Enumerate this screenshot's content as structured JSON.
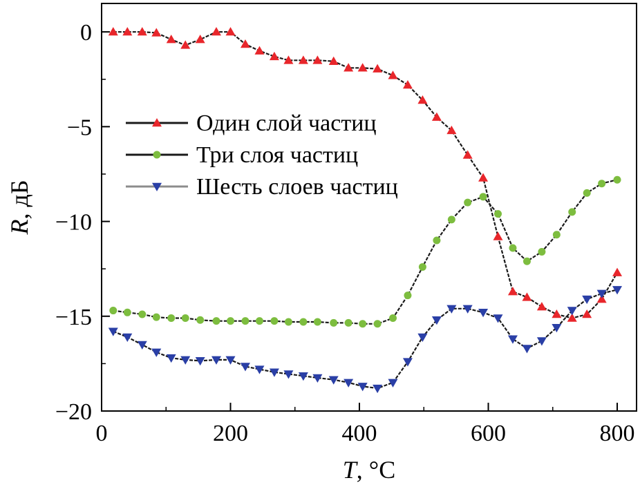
{
  "chart_data": {
    "type": "line",
    "xlabel_var": "T",
    "xlabel_unit": ", °C",
    "ylabel_var": "R",
    "ylabel_unit": ", дБ",
    "xlim": [
      0,
      830
    ],
    "ylim": [
      -20,
      1.5
    ],
    "xticks": [
      0,
      200,
      400,
      600,
      800
    ],
    "yticks": [
      0,
      -5,
      -10,
      -15,
      -20
    ],
    "ytick_labels": [
      "0",
      "−5",
      "−10",
      "−15",
      "−20"
    ],
    "grid": false,
    "legend_position": "center-left",
    "series": [
      {
        "name": "Один слой частиц",
        "color": "#e8262b",
        "marker": "triangle-up",
        "x": [
          18,
          40,
          63,
          85,
          108,
          130,
          153,
          178,
          200,
          223,
          245,
          268,
          290,
          313,
          335,
          360,
          383,
          405,
          428,
          452,
          475,
          498,
          520,
          543,
          568,
          592,
          615,
          638,
          660,
          683,
          706,
          730,
          753,
          776,
          800
        ],
        "y": [
          0,
          0,
          0,
          -0.05,
          -0.4,
          -0.7,
          -0.4,
          0,
          0,
          -0.65,
          -1.0,
          -1.3,
          -1.5,
          -1.5,
          -1.5,
          -1.55,
          -1.9,
          -1.9,
          -1.95,
          -2.3,
          -2.8,
          -3.6,
          -4.5,
          -5.2,
          -6.5,
          -7.7,
          -10.8,
          -13.7,
          -14.0,
          -14.5,
          -14.9,
          -15.1,
          -14.9,
          -14.1,
          -12.7
        ]
      },
      {
        "name": "Три слоя частиц",
        "color": "#7dbd3f",
        "marker": "circle",
        "x": [
          18,
          40,
          63,
          85,
          108,
          130,
          153,
          178,
          200,
          223,
          245,
          268,
          290,
          313,
          335,
          360,
          383,
          405,
          428,
          452,
          475,
          498,
          520,
          543,
          568,
          592,
          615,
          638,
          660,
          683,
          706,
          730,
          753,
          776,
          800
        ],
        "y": [
          -14.7,
          -14.8,
          -14.9,
          -15.05,
          -15.1,
          -15.1,
          -15.2,
          -15.25,
          -15.25,
          -15.25,
          -15.25,
          -15.25,
          -15.3,
          -15.3,
          -15.3,
          -15.35,
          -15.35,
          -15.4,
          -15.4,
          -15.1,
          -13.9,
          -12.4,
          -11.0,
          -9.9,
          -9.0,
          -8.7,
          -9.6,
          -11.4,
          -12.1,
          -11.6,
          -10.7,
          -9.5,
          -8.5,
          -8.0,
          -7.8
        ]
      },
      {
        "name": "Шесть слоев частиц",
        "color": "#2a3fa6",
        "marker": "triangle-down",
        "x": [
          18,
          40,
          63,
          85,
          108,
          130,
          153,
          178,
          200,
          223,
          245,
          268,
          290,
          313,
          335,
          360,
          383,
          405,
          428,
          452,
          475,
          498,
          520,
          543,
          568,
          592,
          615,
          638,
          660,
          683,
          706,
          730,
          753,
          776,
          800
        ],
        "y": [
          -15.8,
          -16.1,
          -16.5,
          -16.9,
          -17.2,
          -17.3,
          -17.35,
          -17.3,
          -17.3,
          -17.65,
          -17.8,
          -17.95,
          -18.05,
          -18.15,
          -18.25,
          -18.35,
          -18.5,
          -18.7,
          -18.8,
          -18.5,
          -17.4,
          -16.1,
          -15.2,
          -14.6,
          -14.6,
          -14.8,
          -15.1,
          -16.2,
          -16.7,
          -16.3,
          -15.6,
          -14.7,
          -14.1,
          -13.8,
          -13.6
        ]
      }
    ]
  }
}
